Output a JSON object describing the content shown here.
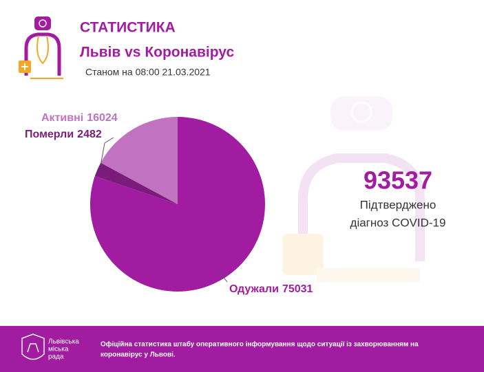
{
  "header": {
    "title": "СТАТИСТИКА",
    "subtitle": "Львів vs Коронавірус",
    "date": "Станом на 08:00 21.03.2021"
  },
  "chart_data": {
    "type": "pie",
    "categories": [
      "Активні",
      "Померли",
      "Одужали"
    ],
    "values": [
      16024,
      2482,
      75031
    ],
    "colors": [
      "#c173c1",
      "#7b1b7b",
      "#a21ca2"
    ],
    "start": "top",
    "direction": "counterclockwise"
  },
  "summary": {
    "total": 93537,
    "label_lines": [
      "Підтверджено",
      "діагноз COVID-19"
    ]
  },
  "footer": {
    "org_lines": [
      "Львівська",
      "міська",
      "рада"
    ],
    "text_lines": [
      "Офіційна статистика штабу оперативного інформування щодо ситуації із захворюванням на",
      "коронавірус у Львові."
    ]
  }
}
